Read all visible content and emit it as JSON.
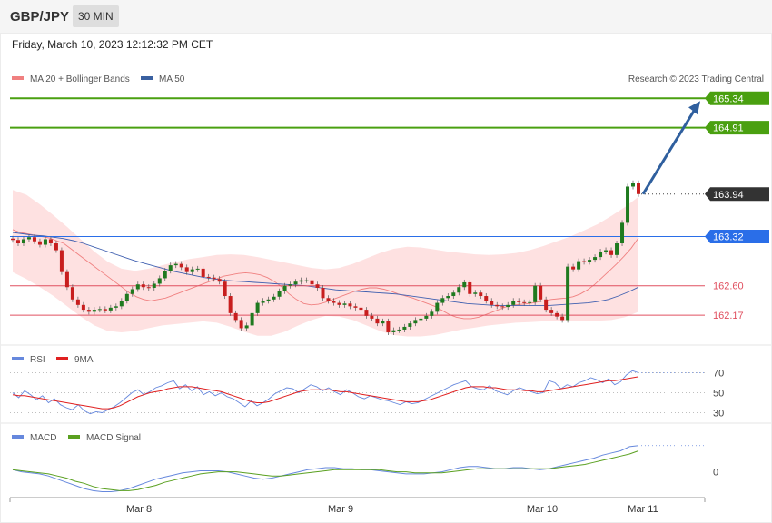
{
  "header": {
    "symbol": "GBP/JPY",
    "timeframe": "30 MIN"
  },
  "datetime": "Friday, March 10, 2023 12:12:32 PM CET",
  "credit": "Research © 2023 Trading Central",
  "colors": {
    "resistance": "#4aa010",
    "support": "#e05060",
    "pivot": "#2a6ee8",
    "current": "#333333",
    "band": "#fdd7d7",
    "ma20": "#f08080",
    "ma50": "#4060b0",
    "arrow": "#2f5f9e",
    "up": "#1f7a1f",
    "down": "#c81e1e",
    "rsi": "#6688dd",
    "rsi_ma": "#e02020",
    "macd": "#6688dd",
    "macd_signal": "#5aa020"
  },
  "main_legend": [
    {
      "label": "MA 20 + Bollinger Bands",
      "color": "#f08080"
    },
    {
      "label": "MA 50",
      "color": "#3a60a0"
    }
  ],
  "rsi_legend": [
    {
      "label": "RSI",
      "color": "#6688dd"
    },
    {
      "label": "9MA",
      "color": "#e02020"
    }
  ],
  "macd_legend": [
    {
      "label": "MACD",
      "color": "#6688dd"
    },
    {
      "label": "MACD Signal",
      "color": "#5aa020"
    }
  ],
  "chart_data": [
    {
      "type": "line",
      "panel": "price",
      "levels": [
        {
          "value": 165.34,
          "label": "165.34",
          "kind": "resistance"
        },
        {
          "value": 164.91,
          "label": "164.91",
          "kind": "resistance"
        },
        {
          "value": 163.94,
          "label": "163.94",
          "kind": "current"
        },
        {
          "value": 163.32,
          "label": "163.32",
          "kind": "pivot"
        },
        {
          "value": 162.6,
          "label": "162.60",
          "kind": "support"
        },
        {
          "value": 162.17,
          "label": "162.17",
          "kind": "support"
        }
      ],
      "ylim": [
        161.8,
        165.45
      ],
      "price_series": [
        163.27,
        163.22,
        163.28,
        163.31,
        163.25,
        163.2,
        163.28,
        163.22,
        163.12,
        162.8,
        162.58,
        162.4,
        162.32,
        162.25,
        162.22,
        162.25,
        162.26,
        162.24,
        162.28,
        162.3,
        162.38,
        162.48,
        162.55,
        162.62,
        162.58,
        162.57,
        162.63,
        162.71,
        162.82,
        162.9,
        162.92,
        162.87,
        162.8,
        162.84,
        162.85,
        162.73,
        162.72,
        162.7,
        162.66,
        162.45,
        162.2,
        162.1,
        161.98,
        162.02,
        162.2,
        162.35,
        162.38,
        162.4,
        162.44,
        162.52,
        162.6,
        162.62,
        162.66,
        162.68,
        162.68,
        162.62,
        162.57,
        162.42,
        162.38,
        162.35,
        162.32,
        162.34,
        162.3,
        162.28,
        162.25,
        162.16,
        162.12,
        162.05,
        162.08,
        161.92,
        161.95,
        161.96,
        162.0,
        162.05,
        162.1,
        162.12,
        162.16,
        162.22,
        162.35,
        162.42,
        162.45,
        162.5,
        162.58,
        162.65,
        162.48,
        162.5,
        162.45,
        162.38,
        162.32,
        162.3,
        162.29,
        162.32,
        162.38,
        162.36,
        162.35,
        162.36,
        162.6,
        162.4,
        162.25,
        162.2,
        162.15,
        162.1,
        162.88,
        162.84,
        162.96,
        162.95,
        162.98,
        163.02,
        163.1,
        163.12,
        163.05,
        163.22,
        163.52,
        164.05,
        164.1,
        163.94
      ],
      "ma20": [
        163.42,
        163.38,
        163.36,
        163.34,
        163.32,
        163.3,
        163.26,
        163.22,
        163.14,
        163.06,
        162.98,
        162.9,
        162.82,
        162.74,
        162.66,
        162.58,
        162.5,
        162.44,
        162.4,
        162.38,
        162.4,
        162.42,
        162.46,
        162.5,
        162.54,
        162.58,
        162.62,
        162.66,
        162.7,
        162.74,
        162.76,
        162.78,
        162.79,
        162.78,
        162.76,
        162.72,
        162.66,
        162.58,
        162.48,
        162.4,
        162.34,
        162.32,
        162.33,
        162.36,
        162.4,
        162.44,
        162.48,
        162.52,
        162.55,
        162.57,
        162.57,
        162.55,
        162.52,
        162.48,
        162.45,
        162.42,
        162.38,
        162.34,
        162.3,
        162.24,
        162.18,
        162.14,
        162.12,
        162.12,
        162.14,
        162.18,
        162.22,
        162.26,
        162.3,
        162.32,
        162.33,
        162.34,
        162.36,
        162.38,
        162.4,
        162.41,
        162.42,
        162.44,
        162.48,
        162.54,
        162.62,
        162.72,
        162.82,
        162.92,
        163.03,
        163.15,
        163.3
      ],
      "ma50": [
        163.38,
        163.36,
        163.34,
        163.33,
        163.31,
        163.29,
        163.26,
        163.22,
        163.17,
        163.12,
        163.07,
        163.02,
        162.97,
        162.93,
        162.89,
        162.85,
        162.81,
        162.78,
        162.75,
        162.72,
        162.7,
        162.68,
        162.67,
        162.66,
        162.65,
        162.64,
        162.63,
        162.62,
        162.61,
        162.6,
        162.58,
        162.56,
        162.54,
        162.53,
        162.52,
        162.51,
        162.5,
        162.49,
        162.48,
        162.46,
        162.44,
        162.42,
        162.4,
        162.38,
        162.36,
        162.34,
        162.33,
        162.32,
        162.31,
        162.31,
        162.31,
        162.31,
        162.31,
        162.31,
        162.32,
        162.33,
        162.34,
        162.35,
        162.37,
        162.4,
        162.45,
        162.51,
        162.58
      ],
      "bollinger_upper": [
        164.0,
        163.93,
        163.79,
        163.63,
        163.46,
        163.28,
        163.1,
        162.95,
        162.85,
        162.82,
        162.85,
        162.9,
        162.95,
        162.99,
        163.02,
        163.05,
        163.06,
        163.05,
        163.02,
        162.98,
        162.94,
        162.9,
        162.86,
        162.84,
        162.86,
        162.92,
        163.0,
        163.08,
        163.14,
        163.17,
        163.16,
        163.13,
        163.1,
        163.08,
        163.06,
        163.05,
        163.06,
        163.08,
        163.12,
        163.18,
        163.25,
        163.32,
        163.41,
        163.5,
        163.62,
        163.75,
        163.9
      ],
      "bollinger_lower": [
        162.8,
        162.7,
        162.58,
        162.45,
        162.3,
        162.15,
        162.02,
        161.94,
        161.92,
        161.94,
        161.98,
        162.02,
        162.04,
        162.06,
        162.08,
        162.06,
        162.0,
        161.93,
        161.87,
        161.87,
        161.93,
        162.02,
        162.1,
        162.16,
        162.15,
        162.1,
        162.02,
        161.94,
        161.88,
        161.86,
        161.86,
        161.88,
        161.92,
        161.96,
        161.99,
        162.02,
        162.04,
        162.06,
        162.07,
        162.08,
        162.08,
        162.08,
        162.08,
        162.09,
        162.1,
        162.14,
        162.22
      ],
      "target": {
        "value": 165.34,
        "label": "165.34"
      }
    },
    {
      "type": "line",
      "panel": "rsi",
      "levels": [
        {
          "value": 70,
          "label": "70"
        },
        {
          "value": 50,
          "label": "50"
        },
        {
          "value": 30,
          "label": "30"
        }
      ],
      "ylim": [
        25,
        75
      ],
      "series": [
        {
          "name": "RSI",
          "values": [
            50,
            45,
            52,
            48,
            43,
            47,
            40,
            44,
            38,
            35,
            33,
            38,
            32,
            29,
            31,
            30,
            33,
            36,
            40,
            45,
            50,
            53,
            48,
            51,
            55,
            57,
            60,
            62,
            54,
            58,
            52,
            56,
            48,
            51,
            47,
            50,
            46,
            44,
            40,
            36,
            42,
            37,
            40,
            44,
            49,
            52,
            55,
            54,
            50,
            54,
            58,
            56,
            52,
            55,
            51,
            48,
            53,
            50,
            46,
            44,
            47,
            45,
            43,
            42,
            40,
            38,
            41,
            39,
            40,
            43,
            46,
            49,
            52,
            55,
            58,
            60,
            62,
            56,
            54,
            53,
            57,
            52,
            50,
            48,
            52,
            55,
            53,
            51,
            49,
            50,
            62,
            60,
            54,
            58,
            56,
            60,
            62,
            65,
            63,
            60,
            64,
            58,
            61,
            68,
            72,
            70
          ]
        },
        {
          "name": "9MA",
          "values": [
            48,
            47,
            47,
            46,
            45,
            44,
            43,
            42,
            41,
            40,
            39,
            38,
            37,
            36,
            35,
            34,
            34,
            35,
            37,
            40,
            43,
            46,
            48,
            50,
            51,
            52,
            54,
            55,
            56,
            56,
            56,
            55,
            54,
            53,
            52,
            51,
            49,
            47,
            45,
            43,
            41,
            40,
            40,
            41,
            43,
            45,
            47,
            49,
            51,
            52,
            53,
            53,
            53,
            53,
            52,
            51,
            51,
            50,
            49,
            48,
            47,
            46,
            45,
            44,
            43,
            42,
            41,
            41,
            41,
            42,
            43,
            45,
            47,
            49,
            51,
            53,
            55,
            56,
            56,
            56,
            55,
            55,
            54,
            53,
            53,
            53,
            52,
            52,
            51,
            51,
            52,
            53,
            54,
            55,
            56,
            57,
            58,
            59,
            60,
            61,
            62,
            62,
            63,
            64,
            65,
            66
          ]
        }
      ]
    },
    {
      "type": "line",
      "panel": "macd",
      "levels": [
        {
          "value": 0,
          "label": "0"
        }
      ],
      "ylim": [
        -0.22,
        0.3
      ],
      "series": [
        {
          "name": "MACD",
          "values": [
            0.02,
            0.0,
            -0.01,
            -0.02,
            -0.04,
            -0.07,
            -0.1,
            -0.13,
            -0.16,
            -0.18,
            -0.19,
            -0.19,
            -0.18,
            -0.16,
            -0.13,
            -0.1,
            -0.07,
            -0.05,
            -0.03,
            -0.01,
            0.0,
            0.01,
            0.01,
            0.01,
            0.0,
            -0.02,
            -0.04,
            -0.06,
            -0.07,
            -0.06,
            -0.04,
            -0.02,
            0.0,
            0.02,
            0.03,
            0.04,
            0.04,
            0.03,
            0.03,
            0.02,
            0.02,
            0.01,
            0.0,
            -0.01,
            -0.02,
            -0.02,
            -0.02,
            -0.01,
            0.0,
            0.02,
            0.04,
            0.05,
            0.05,
            0.04,
            0.03,
            0.03,
            0.04,
            0.04,
            0.03,
            0.02,
            0.03,
            0.05,
            0.07,
            0.09,
            0.11,
            0.13,
            0.16,
            0.18,
            0.2,
            0.24,
            0.25
          ]
        },
        {
          "name": "MACD Signal",
          "values": [
            0.02,
            0.01,
            0.0,
            -0.01,
            -0.02,
            -0.04,
            -0.06,
            -0.09,
            -0.11,
            -0.14,
            -0.16,
            -0.17,
            -0.18,
            -0.18,
            -0.17,
            -0.15,
            -0.13,
            -0.1,
            -0.08,
            -0.06,
            -0.04,
            -0.02,
            -0.01,
            0.0,
            0.0,
            0.0,
            -0.01,
            -0.02,
            -0.03,
            -0.04,
            -0.04,
            -0.03,
            -0.02,
            -0.01,
            0.0,
            0.01,
            0.02,
            0.02,
            0.02,
            0.02,
            0.02,
            0.02,
            0.01,
            0.0,
            0.0,
            -0.01,
            -0.01,
            -0.01,
            -0.01,
            0.0,
            0.01,
            0.02,
            0.03,
            0.03,
            0.03,
            0.03,
            0.03,
            0.03,
            0.03,
            0.03,
            0.03,
            0.04,
            0.05,
            0.06,
            0.07,
            0.09,
            0.11,
            0.13,
            0.15,
            0.17,
            0.2
          ]
        }
      ]
    }
  ],
  "x_labels": [
    "Mar 8",
    "Mar 9",
    "Mar 10",
    "Mar 11"
  ]
}
